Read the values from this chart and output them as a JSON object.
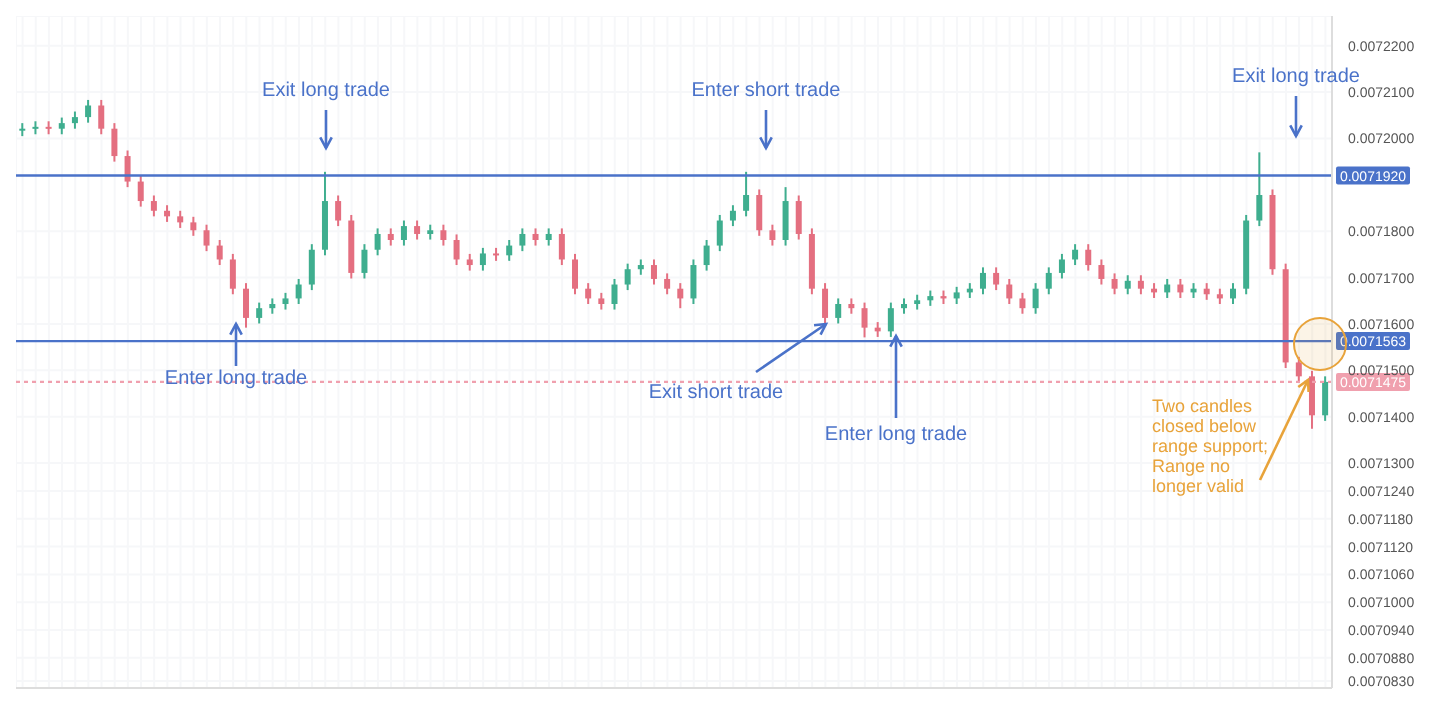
{
  "chart_data": {
    "type": "candlestick",
    "categories": [
      null,
      null,
      null,
      null,
      null,
      null,
      null,
      null,
      null,
      null,
      null,
      null,
      null,
      null,
      null,
      null,
      null,
      null,
      null,
      null,
      null,
      null,
      null,
      null,
      null,
      null,
      null,
      null,
      null,
      null,
      null,
      null,
      null,
      null,
      null,
      null,
      null,
      null,
      null,
      null,
      null,
      null,
      null,
      null,
      null,
      null,
      null,
      null,
      null,
      null,
      null,
      null,
      null,
      null,
      null,
      null,
      null,
      null,
      null,
      null,
      null,
      null,
      null,
      null,
      null,
      null,
      null,
      null,
      null,
      null,
      null,
      null,
      null,
      null,
      null,
      null,
      null,
      null,
      null,
      null,
      null,
      null,
      null,
      null,
      null,
      null,
      null,
      null,
      null,
      null,
      null,
      null,
      null,
      null,
      null,
      null,
      null,
      null,
      null,
      null
    ],
    "ohlc": [
      [
        0.0072017,
        0.0072033,
        0.0072005,
        0.0072021
      ],
      [
        0.0072021,
        0.0072037,
        0.0072009,
        0.0072025
      ],
      [
        0.0072025,
        0.0072037,
        0.0072009,
        0.0072021
      ],
      [
        0.0072021,
        0.0072045,
        0.0072009,
        0.0072033
      ],
      [
        0.0072033,
        0.0072058,
        0.0072021,
        0.0072046
      ],
      [
        0.0072046,
        0.0072083,
        0.0072034,
        0.0072071
      ],
      [
        0.0072071,
        0.0072083,
        0.0072009,
        0.0072021
      ],
      [
        0.0072021,
        0.0072033,
        0.007195,
        0.0071962
      ],
      [
        0.0071962,
        0.0071974,
        0.0071895,
        0.0071907
      ],
      [
        0.0071907,
        0.0071919,
        0.0071853,
        0.0071865
      ],
      [
        0.0071865,
        0.0071877,
        0.0071832,
        0.0071844
      ],
      [
        0.0071844,
        0.0071856,
        0.007182,
        0.0071832
      ],
      [
        0.0071832,
        0.0071844,
        0.0071807,
        0.0071819
      ],
      [
        0.0071819,
        0.0071831,
        0.007179,
        0.0071802
      ],
      [
        0.0071802,
        0.0071814,
        0.0071757,
        0.0071769
      ],
      [
        0.0071769,
        0.0071781,
        0.0071727,
        0.0071739
      ],
      [
        0.0071739,
        0.0071751,
        0.0071664,
        0.0071676
      ],
      [
        0.0071676,
        0.0071688,
        0.0071592,
        0.0071613
      ],
      [
        0.0071613,
        0.0071646,
        0.0071601,
        0.0071634
      ],
      [
        0.0071634,
        0.0071655,
        0.0071622,
        0.0071643
      ],
      [
        0.0071643,
        0.0071667,
        0.0071631,
        0.0071655
      ],
      [
        0.0071655,
        0.0071697,
        0.0071643,
        0.0071685
      ],
      [
        0.0071685,
        0.0071772,
        0.0071673,
        0.007176
      ],
      [
        0.007176,
        0.0071928,
        0.0071748,
        0.0071865
      ],
      [
        0.0071865,
        0.0071877,
        0.0071811,
        0.0071823
      ],
      [
        0.0071823,
        0.0071835,
        0.0071698,
        0.007171
      ],
      [
        0.007171,
        0.0071772,
        0.0071698,
        0.007176
      ],
      [
        0.007176,
        0.0071806,
        0.0071748,
        0.0071794
      ],
      [
        0.0071794,
        0.0071806,
        0.0071769,
        0.0071781
      ],
      [
        0.0071781,
        0.0071823,
        0.0071769,
        0.0071811
      ],
      [
        0.0071811,
        0.0071823,
        0.0071782,
        0.0071794
      ],
      [
        0.0071794,
        0.0071814,
        0.0071782,
        0.0071802
      ],
      [
        0.0071802,
        0.0071814,
        0.0071769,
        0.0071781
      ],
      [
        0.0071781,
        0.0071793,
        0.0071727,
        0.0071739
      ],
      [
        0.0071739,
        0.0071751,
        0.0071715,
        0.0071727
      ],
      [
        0.0071727,
        0.0071764,
        0.0071715,
        0.0071752
      ],
      [
        0.0071752,
        0.0071764,
        0.0071736,
        0.0071748
      ],
      [
        0.0071748,
        0.0071781,
        0.0071736,
        0.0071769
      ],
      [
        0.0071769,
        0.0071806,
        0.0071757,
        0.0071794
      ],
      [
        0.0071794,
        0.0071806,
        0.0071769,
        0.0071781
      ],
      [
        0.0071781,
        0.0071806,
        0.0071769,
        0.0071794
      ],
      [
        0.0071794,
        0.0071806,
        0.0071727,
        0.0071739
      ],
      [
        0.0071739,
        0.0071751,
        0.0071664,
        0.0071676
      ],
      [
        0.0071676,
        0.0071688,
        0.0071643,
        0.0071655
      ],
      [
        0.0071655,
        0.0071667,
        0.0071631,
        0.0071643
      ],
      [
        0.0071643,
        0.0071697,
        0.0071631,
        0.0071685
      ],
      [
        0.0071685,
        0.007173,
        0.0071673,
        0.0071718
      ],
      [
        0.0071718,
        0.0071739,
        0.0071706,
        0.0071727
      ],
      [
        0.0071727,
        0.0071739,
        0.0071685,
        0.0071697
      ],
      [
        0.0071697,
        0.0071709,
        0.0071664,
        0.0071676
      ],
      [
        0.0071676,
        0.0071688,
        0.0071634,
        0.0071655
      ],
      [
        0.0071655,
        0.0071739,
        0.0071643,
        0.0071727
      ],
      [
        0.0071727,
        0.0071781,
        0.0071715,
        0.0071769
      ],
      [
        0.0071769,
        0.0071835,
        0.0071757,
        0.0071823
      ],
      [
        0.0071823,
        0.0071856,
        0.0071811,
        0.0071844
      ],
      [
        0.0071844,
        0.0071928,
        0.0071832,
        0.0071878
      ],
      [
        0.0071878,
        0.007189,
        0.007179,
        0.0071802
      ],
      [
        0.0071802,
        0.0071814,
        0.0071769,
        0.0071781
      ],
      [
        0.0071781,
        0.0071895,
        0.0071769,
        0.0071865
      ],
      [
        0.0071865,
        0.0071877,
        0.0071782,
        0.0071794
      ],
      [
        0.0071794,
        0.0071806,
        0.0071664,
        0.0071676
      ],
      [
        0.0071676,
        0.0071688,
        0.0071601,
        0.0071613
      ],
      [
        0.0071613,
        0.0071655,
        0.0071601,
        0.0071643
      ],
      [
        0.0071643,
        0.0071655,
        0.0071622,
        0.0071634
      ],
      [
        0.0071634,
        0.0071646,
        0.0071571,
        0.0071592
      ],
      [
        0.0071592,
        0.0071604,
        0.0071572,
        0.0071584
      ],
      [
        0.0071584,
        0.0071646,
        0.0071572,
        0.0071634
      ],
      [
        0.0071634,
        0.0071655,
        0.0071622,
        0.0071643
      ],
      [
        0.0071643,
        0.0071663,
        0.0071631,
        0.0071651
      ],
      [
        0.0071651,
        0.0071672,
        0.0071639,
        0.007166
      ],
      [
        0.007166,
        0.0071672,
        0.0071643,
        0.0071655
      ],
      [
        0.0071655,
        0.007168,
        0.0071643,
        0.0071668
      ],
      [
        0.0071668,
        0.0071688,
        0.0071656,
        0.0071676
      ],
      [
        0.0071676,
        0.0071722,
        0.0071664,
        0.007171
      ],
      [
        0.007171,
        0.0071722,
        0.0071673,
        0.0071685
      ],
      [
        0.0071685,
        0.0071697,
        0.0071643,
        0.0071655
      ],
      [
        0.0071655,
        0.0071667,
        0.0071622,
        0.0071634
      ],
      [
        0.0071634,
        0.0071688,
        0.0071622,
        0.0071676
      ],
      [
        0.0071676,
        0.0071722,
        0.0071664,
        0.007171
      ],
      [
        0.007171,
        0.0071751,
        0.0071698,
        0.0071739
      ],
      [
        0.0071739,
        0.0071772,
        0.0071727,
        0.007176
      ],
      [
        0.007176,
        0.0071772,
        0.0071715,
        0.0071727
      ],
      [
        0.0071727,
        0.0071739,
        0.0071685,
        0.0071697
      ],
      [
        0.0071697,
        0.0071709,
        0.0071664,
        0.0071676
      ],
      [
        0.0071676,
        0.0071705,
        0.0071664,
        0.0071693
      ],
      [
        0.0071693,
        0.0071705,
        0.0071664,
        0.0071676
      ],
      [
        0.0071676,
        0.0071688,
        0.0071656,
        0.0071668
      ],
      [
        0.0071668,
        0.0071697,
        0.0071656,
        0.0071685
      ],
      [
        0.0071685,
        0.0071697,
        0.0071656,
        0.0071668
      ],
      [
        0.0071668,
        0.0071688,
        0.0071656,
        0.0071676
      ],
      [
        0.0071676,
        0.0071688,
        0.0071652,
        0.0071664
      ],
      [
        0.0071664,
        0.0071676,
        0.0071643,
        0.0071655
      ],
      [
        0.0071655,
        0.0071688,
        0.0071643,
        0.0071676
      ],
      [
        0.0071676,
        0.0071835,
        0.0071664,
        0.0071823
      ],
      [
        0.0071823,
        0.007197,
        0.0071811,
        0.0071878
      ],
      [
        0.0071878,
        0.007189,
        0.0071706,
        0.0071718
      ],
      [
        0.0071718,
        0.007173,
        0.0071505,
        0.0071517
      ],
      [
        0.0071517,
        0.0071529,
        0.0071475,
        0.0071487
      ],
      [
        0.0071487,
        0.0071499,
        0.0071374,
        0.0071403
      ],
      [
        0.0071403,
        0.0071487,
        0.0071391,
        0.0071475
      ]
    ],
    "ylim": [
      0.0070815,
      0.0072264
    ],
    "yticks": [
      {
        "value": 0.00722,
        "label": "0.0072200"
      },
      {
        "value": 0.00721,
        "label": "0.0072100"
      },
      {
        "value": 0.0072,
        "label": "0.0072000"
      },
      {
        "value": 0.00718,
        "label": "0.0071800"
      },
      {
        "value": 0.00717,
        "label": "0.0071700"
      },
      {
        "value": 0.00716,
        "label": "0.0071600"
      },
      {
        "value": 0.00715,
        "label": "0.0071500"
      },
      {
        "value": 0.00714,
        "label": "0.0071400"
      },
      {
        "value": 0.00713,
        "label": "0.0071300"
      },
      {
        "value": 0.007124,
        "label": "0.0071240"
      },
      {
        "value": 0.007118,
        "label": "0.0071180"
      },
      {
        "value": 0.007112,
        "label": "0.0071120"
      },
      {
        "value": 0.007106,
        "label": "0.0071060"
      },
      {
        "value": 0.0071,
        "label": "0.0071000"
      },
      {
        "value": 0.007094,
        "label": "0.0070940"
      },
      {
        "value": 0.007088,
        "label": "0.0070880"
      },
      {
        "value": 0.007083,
        "label": "0.0070830"
      }
    ],
    "ref_lines": [
      {
        "axis": "y",
        "value": 0.007192,
        "label": "0.0071920",
        "color": "#4a72c9",
        "line_style": "solid"
      },
      {
        "axis": "y",
        "value": 0.0071563,
        "label": "0.0071563",
        "color": "#4a72c9",
        "line_style": "solid"
      },
      {
        "axis": "y",
        "value": 0.0071475,
        "label": "0.0071475",
        "color": "#f0a0ae",
        "line_style": "dotted"
      }
    ],
    "annotations": [
      "Exit long trade",
      "Enter long trade",
      "Enter short trade",
      "Exit short trade",
      "Enter long trade",
      "Exit long trade",
      "Two candles closed below range support; Range no longer valid"
    ],
    "grid": true
  }
}
